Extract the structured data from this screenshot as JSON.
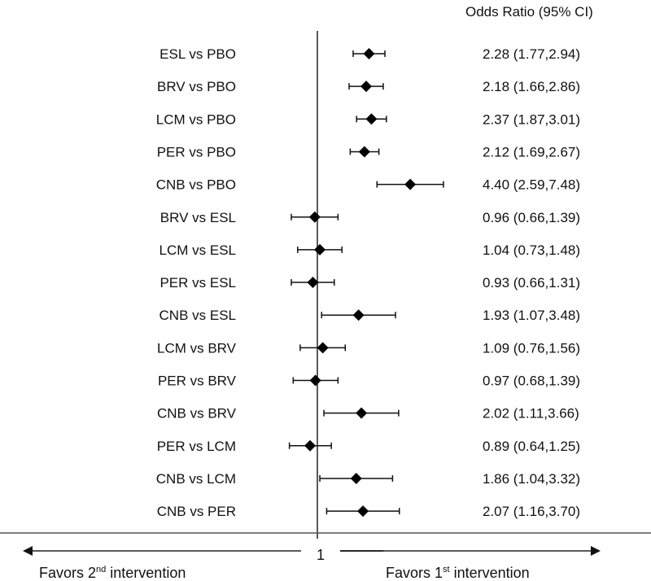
{
  "chart_data": {
    "type": "forest",
    "scale": "log",
    "reference_value": 1,
    "reference_label": "1",
    "column_header": "Odds Ratio (95% CI)",
    "left_direction_label": {
      "text": "Favors 2",
      "sup": "nd",
      "rest": " intervention"
    },
    "right_direction_label": {
      "text": "Favors 1",
      "sup": "st",
      "rest": " intervention"
    },
    "rows": [
      {
        "label": "ESL vs PBO",
        "or": 2.28,
        "lo": 1.77,
        "hi": 2.94,
        "text": "2.28 (1.77,2.94)"
      },
      {
        "label": "BRV vs PBO",
        "or": 2.18,
        "lo": 1.66,
        "hi": 2.86,
        "text": "2.18 (1.66,2.86)"
      },
      {
        "label": "LCM vs PBO",
        "or": 2.37,
        "lo": 1.87,
        "hi": 3.01,
        "text": "2.37 (1.87,3.01)"
      },
      {
        "label": "PER vs PBO",
        "or": 2.12,
        "lo": 1.69,
        "hi": 2.67,
        "text": "2.12 (1.69,2.67)"
      },
      {
        "label": "CNB vs PBO",
        "or": 4.4,
        "lo": 2.59,
        "hi": 7.48,
        "text": "4.40 (2.59,7.48)"
      },
      {
        "label": "BRV vs ESL",
        "or": 0.96,
        "lo": 0.66,
        "hi": 1.39,
        "text": "0.96 (0.66,1.39)"
      },
      {
        "label": "LCM vs ESL",
        "or": 1.04,
        "lo": 0.73,
        "hi": 1.48,
        "text": "1.04 (0.73,1.48)"
      },
      {
        "label": "PER vs ESL",
        "or": 0.93,
        "lo": 0.66,
        "hi": 1.31,
        "text": "0.93 (0.66,1.31)"
      },
      {
        "label": "CNB vs ESL",
        "or": 1.93,
        "lo": 1.07,
        "hi": 3.48,
        "text": "1.93 (1.07,3.48)"
      },
      {
        "label": "LCM vs BRV",
        "or": 1.09,
        "lo": 0.76,
        "hi": 1.56,
        "text": "1.09 (0.76,1.56)"
      },
      {
        "label": "PER vs BRV",
        "or": 0.97,
        "lo": 0.68,
        "hi": 1.39,
        "text": "0.97 (0.68,1.39)"
      },
      {
        "label": "CNB vs BRV",
        "or": 2.02,
        "lo": 1.11,
        "hi": 3.66,
        "text": "2.02 (1.11,3.66)"
      },
      {
        "label": "PER vs LCM",
        "or": 0.89,
        "lo": 0.64,
        "hi": 1.25,
        "text": "0.89 (0.64,1.25)"
      },
      {
        "label": "CNB vs LCM",
        "or": 1.86,
        "lo": 1.04,
        "hi": 3.32,
        "text": "1.86 (1.04,3.32)"
      },
      {
        "label": "CNB vs PER",
        "or": 2.07,
        "lo": 1.16,
        "hi": 3.7,
        "text": "2.07 (1.16,3.70)"
      }
    ]
  }
}
